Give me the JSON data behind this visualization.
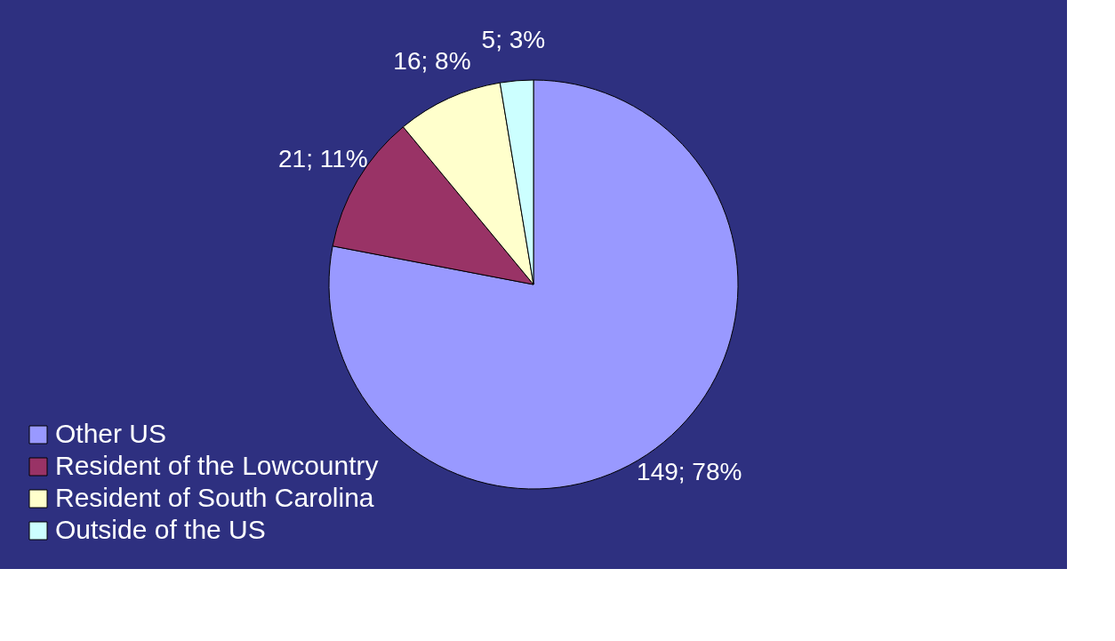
{
  "chart_data": {
    "type": "pie",
    "categories": [
      "Other US",
      "Resident of the Lowcountry",
      "Resident of South Carolina",
      "Outside of the US"
    ],
    "values": [
      149,
      21,
      16,
      5
    ],
    "colors": [
      "#9999ff",
      "#993366",
      "#ffffcc",
      "#ccffff"
    ],
    "value_labels": [
      "149; 78%",
      "21; 11%",
      "16; 8%",
      "5; 3%"
    ],
    "legend": "bottom left"
  }
}
